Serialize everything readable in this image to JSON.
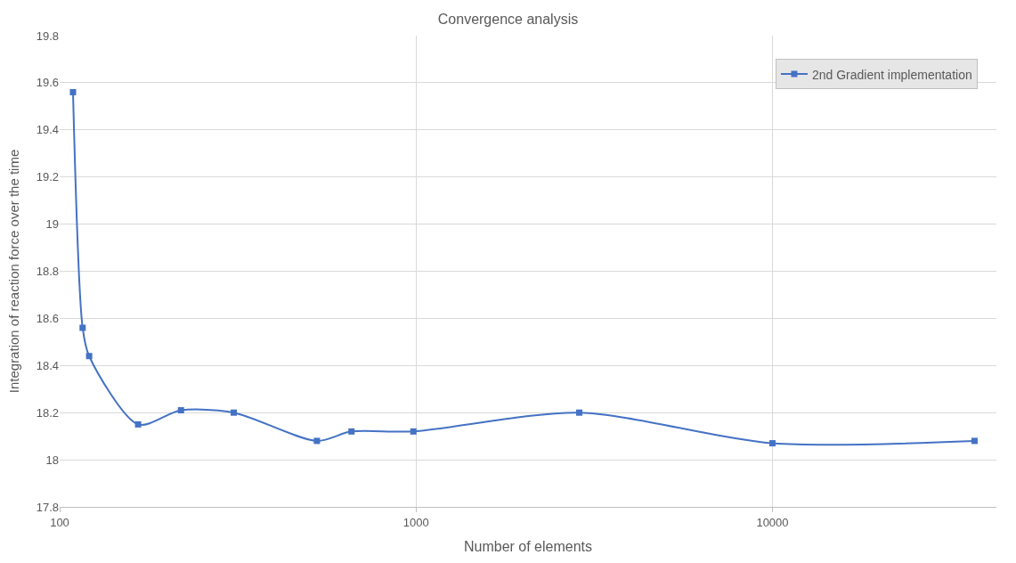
{
  "chart_data": {
    "type": "line",
    "title": "Convergence analysis",
    "xlabel": "Number of elements",
    "ylabel": "Integration of reaction force over the time",
    "x": [
      109,
      116,
      121,
      166,
      219,
      308,
      527,
      659,
      983,
      2870,
      10000,
      36900
    ],
    "series": [
      {
        "name": "2nd Gradient implementation",
        "color": "#4472c4",
        "values": [
          19.56,
          18.56,
          18.44,
          18.15,
          18.21,
          18.2,
          18.08,
          18.12,
          18.12,
          18.2,
          18.07,
          18.08
        ]
      }
    ],
    "log": "x",
    "xlim": [
      100,
      42500
    ],
    "xticks": [
      100,
      1000,
      10000
    ],
    "ylim": [
      17.8,
      19.8
    ],
    "yticks": [
      17.8,
      18,
      18.2,
      18.4,
      18.6,
      18.8,
      19,
      19.2,
      19.4,
      19.6,
      19.8
    ],
    "grid": true,
    "legend": "top right",
    "marker": "square",
    "line_style": "solid"
  }
}
